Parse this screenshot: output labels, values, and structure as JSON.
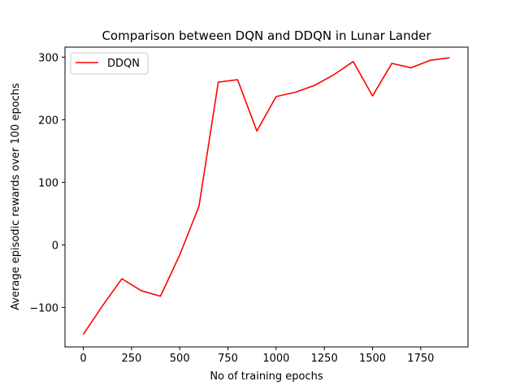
{
  "chart_data": {
    "type": "line",
    "title": "Comparison between DQN and DDQN in Lunar Lander",
    "xlabel": "No of training epochs",
    "ylabel": "Average episodic rewards over 100 epochs",
    "xlim": [
      -95,
      1995
    ],
    "ylim": [
      -163,
      316
    ],
    "x_ticks": [
      0,
      250,
      500,
      750,
      1000,
      1250,
      1500,
      1750
    ],
    "y_ticks": [
      -100,
      0,
      100,
      200,
      300
    ],
    "x": [
      0,
      100,
      200,
      300,
      400,
      500,
      600,
      700,
      800,
      900,
      1000,
      1100,
      1200,
      1300,
      1400,
      1500,
      1600,
      1700,
      1800,
      1900
    ],
    "series": [
      {
        "name": "DDQN",
        "color": "#ff0000",
        "values": [
          -143,
          -97,
          -54,
          -73,
          -82,
          -16,
          62,
          260,
          264,
          182,
          237,
          244,
          255,
          272,
          293,
          238,
          290,
          283,
          295,
          299
        ]
      }
    ],
    "legend": "top-left",
    "grid": false
  }
}
